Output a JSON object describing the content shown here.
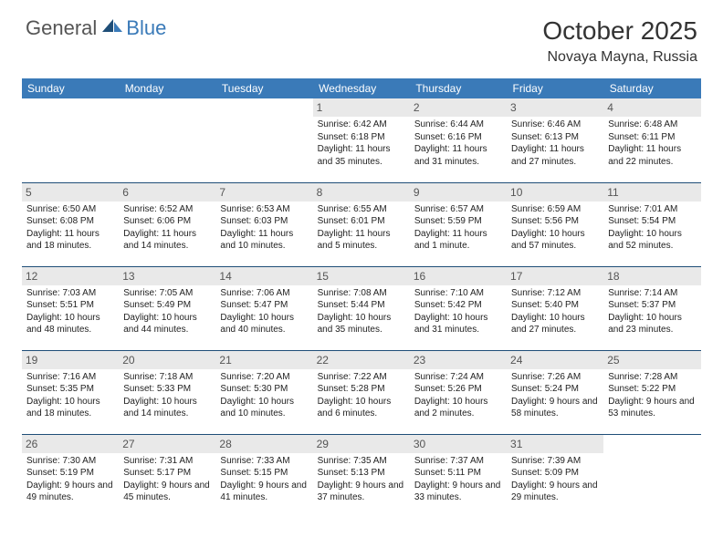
{
  "brand": {
    "general": "General",
    "blue": "Blue"
  },
  "title": "October 2025",
  "location": "Novaya Mayna, Russia",
  "colors": {
    "header_bg": "#3a7ab8",
    "header_text": "#ffffff",
    "day_bg": "#e9e9e9",
    "border": "#1f4e78",
    "body_text": "#222222"
  },
  "dayNames": [
    "Sunday",
    "Monday",
    "Tuesday",
    "Wednesday",
    "Thursday",
    "Friday",
    "Saturday"
  ],
  "weeks": [
    [
      null,
      null,
      null,
      {
        "n": "1",
        "sr": "Sunrise: 6:42 AM",
        "ss": "Sunset: 6:18 PM",
        "dl": "Daylight: 11 hours and 35 minutes."
      },
      {
        "n": "2",
        "sr": "Sunrise: 6:44 AM",
        "ss": "Sunset: 6:16 PM",
        "dl": "Daylight: 11 hours and 31 minutes."
      },
      {
        "n": "3",
        "sr": "Sunrise: 6:46 AM",
        "ss": "Sunset: 6:13 PM",
        "dl": "Daylight: 11 hours and 27 minutes."
      },
      {
        "n": "4",
        "sr": "Sunrise: 6:48 AM",
        "ss": "Sunset: 6:11 PM",
        "dl": "Daylight: 11 hours and 22 minutes."
      }
    ],
    [
      {
        "n": "5",
        "sr": "Sunrise: 6:50 AM",
        "ss": "Sunset: 6:08 PM",
        "dl": "Daylight: 11 hours and 18 minutes."
      },
      {
        "n": "6",
        "sr": "Sunrise: 6:52 AM",
        "ss": "Sunset: 6:06 PM",
        "dl": "Daylight: 11 hours and 14 minutes."
      },
      {
        "n": "7",
        "sr": "Sunrise: 6:53 AM",
        "ss": "Sunset: 6:03 PM",
        "dl": "Daylight: 11 hours and 10 minutes."
      },
      {
        "n": "8",
        "sr": "Sunrise: 6:55 AM",
        "ss": "Sunset: 6:01 PM",
        "dl": "Daylight: 11 hours and 5 minutes."
      },
      {
        "n": "9",
        "sr": "Sunrise: 6:57 AM",
        "ss": "Sunset: 5:59 PM",
        "dl": "Daylight: 11 hours and 1 minute."
      },
      {
        "n": "10",
        "sr": "Sunrise: 6:59 AM",
        "ss": "Sunset: 5:56 PM",
        "dl": "Daylight: 10 hours and 57 minutes."
      },
      {
        "n": "11",
        "sr": "Sunrise: 7:01 AM",
        "ss": "Sunset: 5:54 PM",
        "dl": "Daylight: 10 hours and 52 minutes."
      }
    ],
    [
      {
        "n": "12",
        "sr": "Sunrise: 7:03 AM",
        "ss": "Sunset: 5:51 PM",
        "dl": "Daylight: 10 hours and 48 minutes."
      },
      {
        "n": "13",
        "sr": "Sunrise: 7:05 AM",
        "ss": "Sunset: 5:49 PM",
        "dl": "Daylight: 10 hours and 44 minutes."
      },
      {
        "n": "14",
        "sr": "Sunrise: 7:06 AM",
        "ss": "Sunset: 5:47 PM",
        "dl": "Daylight: 10 hours and 40 minutes."
      },
      {
        "n": "15",
        "sr": "Sunrise: 7:08 AM",
        "ss": "Sunset: 5:44 PM",
        "dl": "Daylight: 10 hours and 35 minutes."
      },
      {
        "n": "16",
        "sr": "Sunrise: 7:10 AM",
        "ss": "Sunset: 5:42 PM",
        "dl": "Daylight: 10 hours and 31 minutes."
      },
      {
        "n": "17",
        "sr": "Sunrise: 7:12 AM",
        "ss": "Sunset: 5:40 PM",
        "dl": "Daylight: 10 hours and 27 minutes."
      },
      {
        "n": "18",
        "sr": "Sunrise: 7:14 AM",
        "ss": "Sunset: 5:37 PM",
        "dl": "Daylight: 10 hours and 23 minutes."
      }
    ],
    [
      {
        "n": "19",
        "sr": "Sunrise: 7:16 AM",
        "ss": "Sunset: 5:35 PM",
        "dl": "Daylight: 10 hours and 18 minutes."
      },
      {
        "n": "20",
        "sr": "Sunrise: 7:18 AM",
        "ss": "Sunset: 5:33 PM",
        "dl": "Daylight: 10 hours and 14 minutes."
      },
      {
        "n": "21",
        "sr": "Sunrise: 7:20 AM",
        "ss": "Sunset: 5:30 PM",
        "dl": "Daylight: 10 hours and 10 minutes."
      },
      {
        "n": "22",
        "sr": "Sunrise: 7:22 AM",
        "ss": "Sunset: 5:28 PM",
        "dl": "Daylight: 10 hours and 6 minutes."
      },
      {
        "n": "23",
        "sr": "Sunrise: 7:24 AM",
        "ss": "Sunset: 5:26 PM",
        "dl": "Daylight: 10 hours and 2 minutes."
      },
      {
        "n": "24",
        "sr": "Sunrise: 7:26 AM",
        "ss": "Sunset: 5:24 PM",
        "dl": "Daylight: 9 hours and 58 minutes."
      },
      {
        "n": "25",
        "sr": "Sunrise: 7:28 AM",
        "ss": "Sunset: 5:22 PM",
        "dl": "Daylight: 9 hours and 53 minutes."
      }
    ],
    [
      {
        "n": "26",
        "sr": "Sunrise: 7:30 AM",
        "ss": "Sunset: 5:19 PM",
        "dl": "Daylight: 9 hours and 49 minutes."
      },
      {
        "n": "27",
        "sr": "Sunrise: 7:31 AM",
        "ss": "Sunset: 5:17 PM",
        "dl": "Daylight: 9 hours and 45 minutes."
      },
      {
        "n": "28",
        "sr": "Sunrise: 7:33 AM",
        "ss": "Sunset: 5:15 PM",
        "dl": "Daylight: 9 hours and 41 minutes."
      },
      {
        "n": "29",
        "sr": "Sunrise: 7:35 AM",
        "ss": "Sunset: 5:13 PM",
        "dl": "Daylight: 9 hours and 37 minutes."
      },
      {
        "n": "30",
        "sr": "Sunrise: 7:37 AM",
        "ss": "Sunset: 5:11 PM",
        "dl": "Daylight: 9 hours and 33 minutes."
      },
      {
        "n": "31",
        "sr": "Sunrise: 7:39 AM",
        "ss": "Sunset: 5:09 PM",
        "dl": "Daylight: 9 hours and 29 minutes."
      },
      null
    ]
  ]
}
